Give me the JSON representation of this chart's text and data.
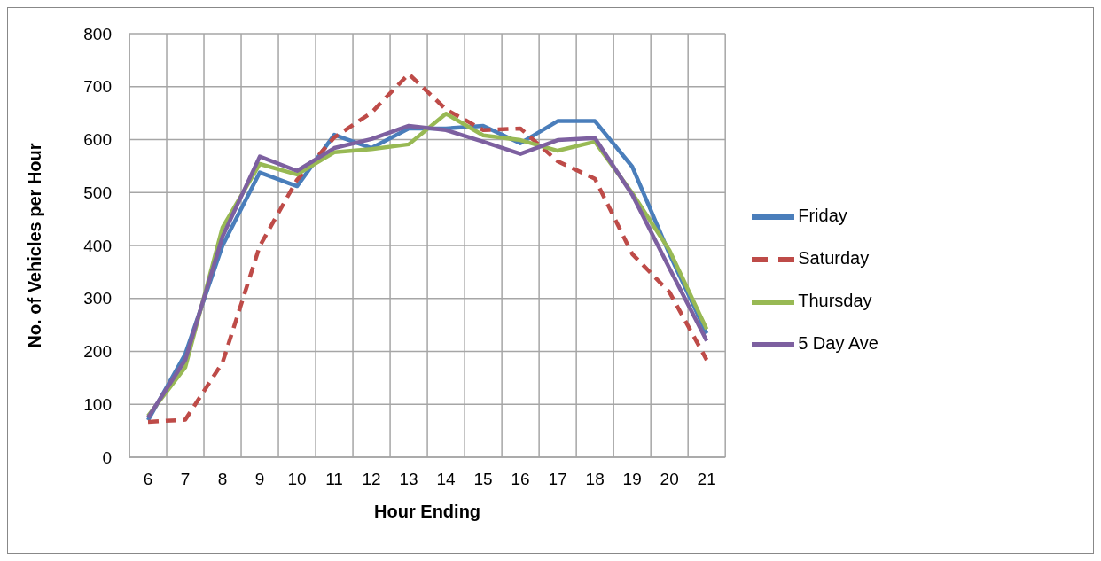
{
  "chart_data": {
    "type": "line",
    "xlabel": "Hour Ending",
    "ylabel": "No. of Vehicles per Hour",
    "categories": [
      "6",
      "7",
      "8",
      "9",
      "10",
      "11",
      "12",
      "13",
      "14",
      "15",
      "16",
      "17",
      "18",
      "19",
      "20",
      "21"
    ],
    "series": [
      {
        "name": "Friday",
        "color": "#4a7ebb",
        "line_style": "solid",
        "values": [
          70,
          195,
          400,
          538,
          512,
          609,
          584,
          621,
          621,
          626,
          593,
          635,
          635,
          549,
          384,
          234
        ]
      },
      {
        "name": "Saturday",
        "color": "#be4b48",
        "line_style": "dashed",
        "values": [
          67,
          71,
          179,
          399,
          524,
          604,
          651,
          724,
          657,
          618,
          621,
          559,
          526,
          384,
          312,
          184
        ]
      },
      {
        "name": "Thursday",
        "color": "#98b954",
        "line_style": "solid",
        "values": [
          78,
          170,
          434,
          554,
          534,
          576,
          582,
          591,
          649,
          608,
          599,
          579,
          596,
          499,
          391,
          242
        ]
      },
      {
        "name": "5 Day Ave",
        "color": "#7d60a0",
        "line_style": "solid",
        "values": [
          75,
          184,
          417,
          568,
          541,
          584,
          601,
          626,
          618,
          596,
          573,
          599,
          603,
          496,
          357,
          220
        ]
      }
    ],
    "ylim": [
      0,
      800
    ],
    "yticks": [
      0,
      100,
      200,
      300,
      400,
      500,
      600,
      700,
      800
    ],
    "grid": true,
    "legend": "right",
    "marker": "none"
  }
}
